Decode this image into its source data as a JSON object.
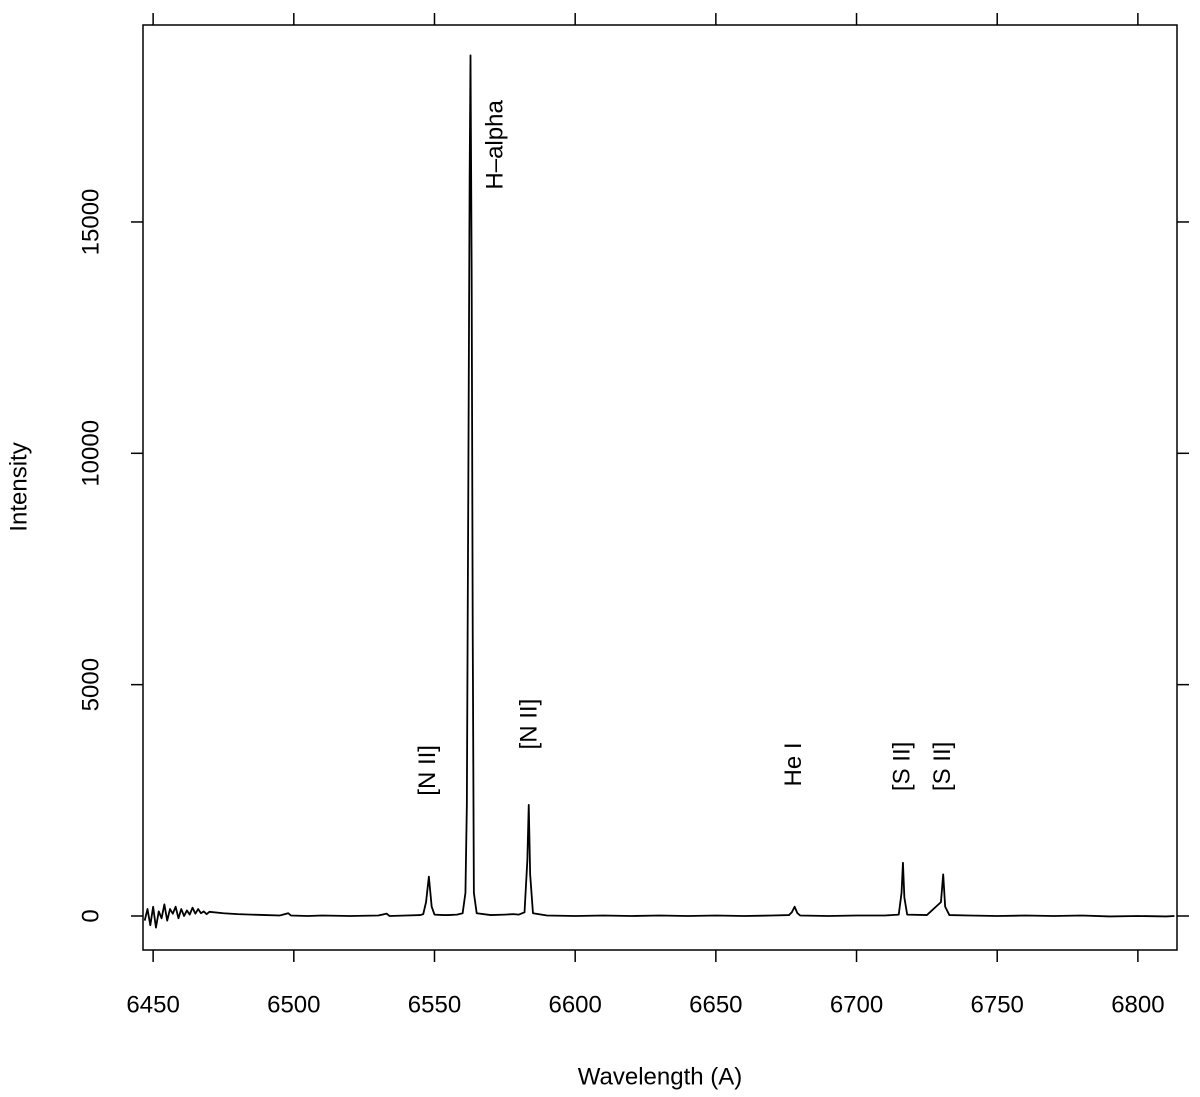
{
  "chart_data": {
    "type": "line",
    "xlabel": "Wavelength (A)",
    "ylabel": "Intensity",
    "xlim": [
      6446.4,
      6813.9
    ],
    "ylim": [
      -735,
      19257
    ],
    "xticks": [
      6450,
      6500,
      6550,
      6600,
      6650,
      6700,
      6750,
      6800
    ],
    "yticks": [
      0,
      5000,
      10000,
      15000
    ],
    "grid": false,
    "series": [
      {
        "color": "#000000",
        "x": [
          6447,
          6448,
          6449,
          6450,
          6451,
          6452,
          6453,
          6454,
          6455,
          6456,
          6457,
          6458,
          6459,
          6460,
          6461,
          6462,
          6463,
          6464,
          6465,
          6466,
          6467,
          6468,
          6469,
          6470,
          6475,
          6480,
          6485,
          6490,
          6495,
          6498,
          6499,
          6505,
          6510,
          6520,
          6530,
          6533,
          6534,
          6540,
          6545,
          6546,
          6547,
          6548,
          6549,
          6550,
          6553,
          6555,
          6558,
          6560,
          6561,
          6561.5,
          6562,
          6562.5,
          6562.8,
          6563.2,
          6563.6,
          6564,
          6565,
          6570,
          6575,
          6578,
          6580,
          6582,
          6583,
          6583.5,
          6584,
          6585,
          6590,
          6600,
          6610,
          6620,
          6630,
          6640,
          6650,
          6660,
          6670,
          6676,
          6677,
          6678,
          6679,
          6680,
          6690,
          6700,
          6710,
          6715,
          6716,
          6716.5,
          6717,
          6718,
          6725,
          6730,
          6730.8,
          6731.5,
          6733,
          6740,
          6750,
          6760,
          6770,
          6780,
          6790,
          6800,
          6810,
          6813
        ],
        "values": [
          -100,
          150,
          -200,
          200,
          -250,
          100,
          -50,
          250,
          -100,
          150,
          50,
          200,
          -50,
          150,
          0,
          120,
          30,
          180,
          50,
          150,
          60,
          100,
          40,
          90,
          60,
          40,
          30,
          20,
          10,
          60,
          10,
          0,
          10,
          0,
          10,
          50,
          0,
          10,
          20,
          40,
          300,
          850,
          200,
          30,
          20,
          20,
          30,
          60,
          500,
          2400,
          9000,
          16000,
          18600,
          14000,
          6000,
          500,
          60,
          20,
          30,
          40,
          30,
          80,
          1200,
          2400,
          900,
          60,
          10,
          0,
          10,
          0,
          10,
          0,
          10,
          0,
          10,
          20,
          80,
          200,
          60,
          10,
          0,
          10,
          10,
          30,
          500,
          1150,
          400,
          30,
          20,
          300,
          900,
          200,
          20,
          10,
          0,
          10,
          0,
          10,
          -10,
          0,
          -10,
          0
        ]
      }
    ],
    "annotations": [
      {
        "text": "H–alpha",
        "x": 6572,
        "y": 15700
      },
      {
        "text": "[N II]",
        "x": 6548,
        "y": 2600
      },
      {
        "text": "[N II]",
        "x": 6584,
        "y": 3600
      },
      {
        "text": "He I",
        "x": 6678,
        "y": 2800
      },
      {
        "text": "[S II]",
        "x": 6716.5,
        "y": 2700
      },
      {
        "text": "[S II]",
        "x": 6731,
        "y": 2700
      }
    ]
  }
}
